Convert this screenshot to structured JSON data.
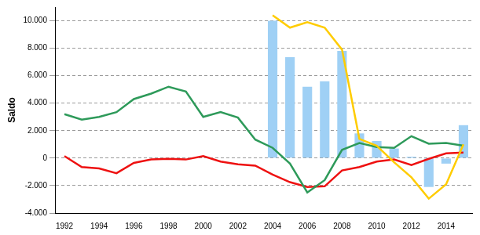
{
  "chart_data": {
    "type": "bar",
    "y_label": "Saldo",
    "categories": [
      "1992",
      null,
      "1994",
      null,
      "1996",
      null,
      "1998",
      null,
      "2000",
      null,
      "2002",
      null,
      "2004",
      null,
      "2006",
      null,
      "2008",
      null,
      "2010",
      null,
      "2012",
      null,
      "2014",
      null
    ],
    "series": [
      {
        "type": "bar",
        "color": "#9fd0f5",
        "values": [
          null,
          null,
          null,
          null,
          null,
          null,
          null,
          null,
          null,
          null,
          null,
          null,
          10000,
          7350,
          5200,
          5600,
          7800,
          1800,
          1250,
          700,
          100,
          -2100,
          -400,
          2400
        ]
      },
      {
        "type": "line",
        "color": "#ffcc00",
        "values": [
          null,
          null,
          null,
          null,
          null,
          null,
          null,
          null,
          null,
          null,
          null,
          null,
          10400,
          9500,
          9900,
          9500,
          7900,
          1400,
          900,
          -300,
          -1400,
          -2950,
          -1900,
          1000
        ]
      },
      {
        "type": "line",
        "color": "#2e9a5a",
        "values": [
          3200,
          2800,
          3000,
          3350,
          4300,
          4700,
          5200,
          4850,
          3000,
          3350,
          2950,
          1350,
          750,
          -400,
          -2500,
          -1600,
          600,
          1100,
          800,
          750,
          1600,
          1050,
          1100,
          900
        ]
      },
      {
        "type": "line",
        "color": "#ee1111",
        "values": [
          150,
          -650,
          -750,
          -1100,
          -350,
          -100,
          -50,
          -100,
          150,
          -250,
          -450,
          -550,
          -1200,
          -1750,
          -2100,
          -2050,
          -900,
          -650,
          -250,
          -100,
          -500,
          -50,
          350,
          400
        ]
      }
    ],
    "ylim": [
      -4000,
      11000
    ],
    "yticks": [
      {
        "value": -4000,
        "label": "-4.000"
      },
      {
        "value": -2000,
        "label": "-2.000"
      },
      0,
      {
        "value": 2000,
        "label": "2.000"
      },
      {
        "value": 4000,
        "label": "4.000"
      },
      {
        "value": 6000,
        "label": "6.000"
      },
      {
        "value": 8000,
        "label": "8.000"
      },
      {
        "value": 10000,
        "label": "10.000"
      }
    ],
    "grid": true
  }
}
